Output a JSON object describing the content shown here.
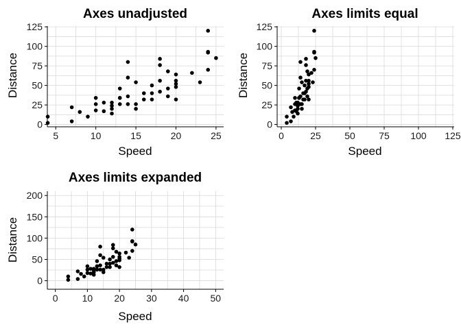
{
  "chart_data": [
    {
      "type": "scatter",
      "title": "Axes unadjusted",
      "xlabel": "Speed",
      "ylabel": "Distance",
      "xlim": [
        3.95,
        25.95
      ],
      "ylim": [
        -3,
        126
      ],
      "xticks": [
        5,
        10,
        15,
        20,
        25
      ],
      "yticks": [
        0,
        25,
        50,
        75,
        100,
        125
      ],
      "grid": true,
      "points_ref": "cars"
    },
    {
      "type": "scatter",
      "title": "Axes limits equal",
      "xlabel": "Speed",
      "ylabel": "Distance",
      "xlim": [
        -3,
        126
      ],
      "ylim": [
        -3,
        126
      ],
      "xticks": [
        0,
        25,
        50,
        75,
        100,
        125
      ],
      "yticks": [
        0,
        25,
        50,
        75,
        100,
        125
      ],
      "grid": true,
      "points_ref": "cars"
    },
    {
      "type": "scatter",
      "title": "Axes limits expanded",
      "xlabel": "Speed",
      "ylabel": "Distance",
      "xlim": [
        -2.5,
        52.5
      ],
      "ylim": [
        -20,
        210
      ],
      "xticks": [
        0,
        10,
        20,
        30,
        40,
        50
      ],
      "yticks": [
        0,
        50,
        100,
        150,
        200
      ],
      "grid": true,
      "points_ref": "cars"
    }
  ],
  "cars": {
    "speed": [
      4,
      4,
      7,
      7,
      8,
      9,
      10,
      10,
      10,
      11,
      11,
      12,
      12,
      12,
      12,
      13,
      13,
      13,
      13,
      14,
      14,
      14,
      14,
      15,
      15,
      15,
      16,
      16,
      17,
      17,
      17,
      18,
      18,
      18,
      18,
      19,
      19,
      19,
      20,
      20,
      20,
      20,
      20,
      22,
      23,
      24,
      24,
      24,
      24,
      25
    ],
    "dist": [
      2,
      10,
      4,
      22,
      16,
      10,
      18,
      26,
      34,
      17,
      28,
      14,
      20,
      24,
      28,
      26,
      34,
      34,
      46,
      26,
      36,
      60,
      80,
      20,
      26,
      54,
      32,
      40,
      32,
      40,
      50,
      42,
      56,
      76,
      84,
      36,
      46,
      68,
      32,
      48,
      52,
      56,
      64,
      66,
      54,
      70,
      92,
      93,
      120,
      85
    ]
  }
}
